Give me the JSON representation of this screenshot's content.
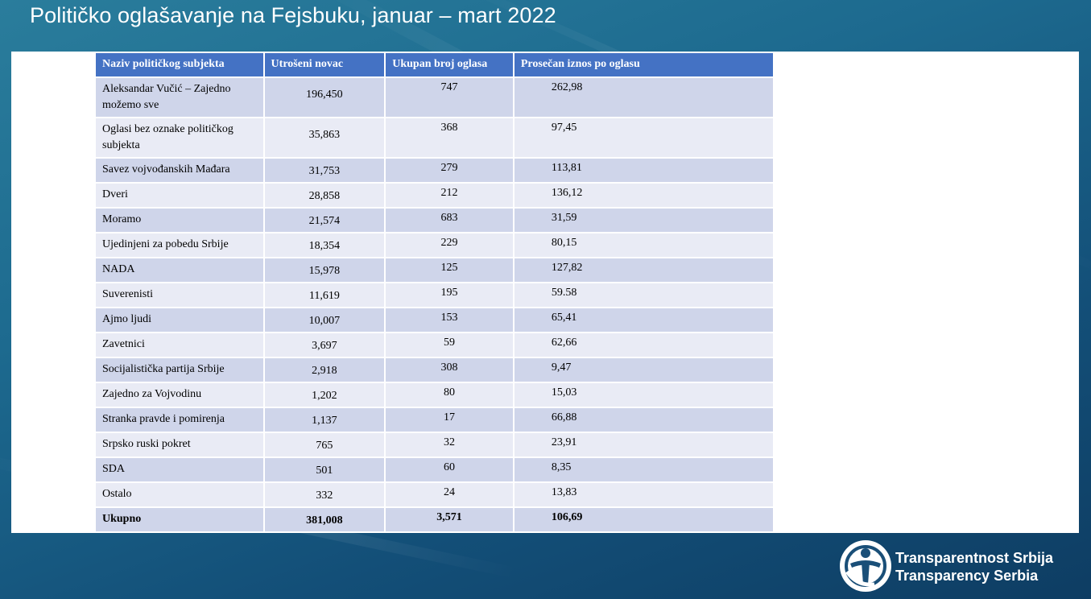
{
  "slide": {
    "title": "Političko oglašavanje na Fejsbuku, januar – mart 2022"
  },
  "table": {
    "headers": [
      "Naziv političkog subjekta",
      "Utrošeni novac",
      "Ukupan broj oglasa",
      "Prosečan iznos po oglasu"
    ],
    "rows": [
      [
        "Aleksandar Vučić – Zajedno možemo sve",
        "196,450",
        "747",
        "262,98"
      ],
      [
        "Oglasi bez oznake političkog subjekta",
        "35,863",
        "368",
        "97,45"
      ],
      [
        "Savez vojvođanskih Mađara",
        "31,753",
        "279",
        "113,81"
      ],
      [
        "Dveri",
        "28,858",
        "212",
        "136,12"
      ],
      [
        "Moramo",
        "21,574",
        "683",
        "31,59"
      ],
      [
        "Ujedinjeni za pobedu Srbije",
        "18,354",
        "229",
        "80,15"
      ],
      [
        "NADA",
        "15,978",
        "125",
        "127,82"
      ],
      [
        "Suverenisti",
        "11,619",
        "195",
        "59.58"
      ],
      [
        "Ajmo ljudi",
        "10,007",
        "153",
        "65,41"
      ],
      [
        "Zavetnici",
        "3,697",
        "59",
        "62,66"
      ],
      [
        "Socijalistička partija Srbije",
        "2,918",
        "308",
        "9,47"
      ],
      [
        "Zajedno za Vojvodinu",
        "1,202",
        "80",
        "15,03"
      ],
      [
        "Stranka pravde i pomirenja",
        "1,137",
        "17",
        "66,88"
      ],
      [
        "Srpsko ruski pokret",
        "765",
        "32",
        "23,91"
      ],
      [
        "SDA",
        "501",
        "60",
        "8,35"
      ],
      [
        "Ostalo",
        "332",
        "24",
        "13,83"
      ],
      [
        "Ukupno",
        "381,008",
        "3,571",
        "106,69"
      ]
    ]
  },
  "logo": {
    "line1": "Transparentnost Srbija",
    "line2": "Transparency Serbia"
  },
  "colors": {
    "header": "#4472c4",
    "row_odd": "#cfd5ea",
    "row_even": "#e9ebf5"
  }
}
